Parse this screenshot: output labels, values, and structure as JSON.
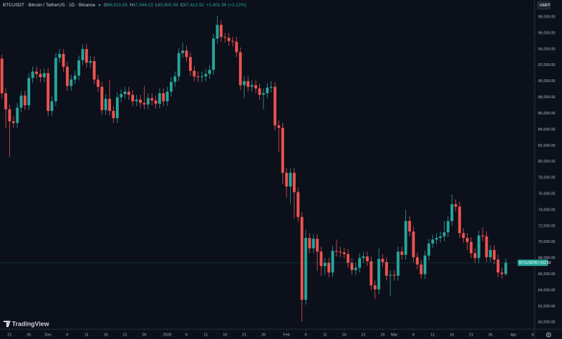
{
  "header": {
    "symbol": "BTCUSDT · Bitcoin / TetherUS · 1D · Binance",
    "ohlc": [
      {
        "key": "O",
        "value": "66,010.93"
      },
      {
        "key": "H",
        "value": "67,946.02"
      },
      {
        "key": "L",
        "value": "65,800.59"
      },
      {
        "key": "C",
        "value": "67,412.92"
      }
    ],
    "change": "+1,401.99 (+2.12%)",
    "currency": "USDT",
    "brand": "TradingView"
  },
  "chart_data": {
    "type": "candlestick",
    "up_color": "#26a69a",
    "down_color": "#ef5350",
    "last_price": 67412.92,
    "last_price_symbol": "BTCUSDT",
    "last_price_label": "67,412.92",
    "open": [
      92800,
      88500,
      86500,
      85000,
      84800,
      86700,
      88200,
      87000,
      90400,
      91200,
      90900,
      90500,
      91000,
      86300,
      87500,
      92900,
      93400,
      91800,
      89400,
      90200,
      90700,
      92600,
      94000,
      92300,
      92500,
      90200,
      89300,
      86400,
      87800,
      86300,
      85400,
      88000,
      88400,
      88700,
      88300,
      87500,
      87700,
      87300,
      87100,
      87900,
      87600,
      87200,
      88500,
      87500,
      88700,
      89900,
      90600,
      93500,
      93800,
      93000,
      91300,
      90600,
      90500,
      90600,
      90900,
      91400,
      95300,
      97000,
      95500,
      95400,
      95000,
      94900,
      93600,
      89500,
      90000,
      89300,
      89500,
      89100,
      88300,
      88500,
      89200,
      89300,
      84500,
      84200,
      78600,
      76900,
      78600,
      76200,
      73100,
      62800,
      70500,
      69200,
      70400,
      68800,
      67000,
      67400,
      66200,
      68900,
      68800,
      68700,
      68500,
      67400,
      66500,
      66800,
      68000,
      68200,
      67600,
      64600,
      64100,
      67900,
      67500,
      65800,
      65900,
      65800,
      68800,
      68400,
      72600,
      71300,
      68100,
      67200,
      66000,
      68300,
      69800,
      70300,
      70500,
      70700,
      71200,
      72600,
      74700,
      74400,
      71100,
      70500,
      70000,
      68600,
      68000,
      70800,
      70700,
      68100,
      69000,
      67800,
      66200,
      66010.93
    ],
    "high": [
      93300,
      89100,
      87100,
      85600,
      87300,
      88800,
      88800,
      91000,
      91800,
      91800,
      91500,
      91600,
      91600,
      88100,
      93500,
      94000,
      94000,
      92400,
      90800,
      91300,
      93200,
      94600,
      94600,
      93100,
      93100,
      90800,
      89900,
      88400,
      90200,
      86900,
      88600,
      89000,
      89300,
      89300,
      88900,
      88300,
      88300,
      89400,
      88500,
      88500,
      88200,
      89100,
      89100,
      89300,
      90500,
      91200,
      94100,
      94800,
      94400,
      93600,
      91900,
      91200,
      91200,
      91500,
      92000,
      95900,
      98100,
      97600,
      96000,
      96000,
      95500,
      95500,
      94200,
      90600,
      90600,
      90100,
      90100,
      89700,
      89100,
      89800,
      90000,
      89900,
      85100,
      84800,
      79200,
      79200,
      79200,
      76800,
      73700,
      71500,
      71100,
      71000,
      71000,
      69400,
      68000,
      68000,
      69500,
      70300,
      69400,
      69300,
      69100,
      68000,
      67400,
      68600,
      68800,
      68800,
      68200,
      65200,
      69200,
      68500,
      68100,
      66500,
      66500,
      69400,
      69400,
      74000,
      73200,
      71900,
      68700,
      67800,
      68900,
      70400,
      70900,
      71100,
      71300,
      72600,
      73200,
      75900,
      75300,
      75000,
      71700,
      71100,
      70600,
      69200,
      71400,
      71800,
      71300,
      69600,
      69600,
      68400,
      66800,
      67946.02
    ],
    "low": [
      87900,
      84200,
      80600,
      84200,
      84200,
      86100,
      86400,
      86400,
      89800,
      90300,
      89900,
      89900,
      85700,
      85700,
      86900,
      92300,
      91200,
      88800,
      88800,
      89600,
      90100,
      92000,
      91700,
      91700,
      89600,
      88700,
      85800,
      85800,
      85700,
      84800,
      84800,
      87400,
      87800,
      87700,
      86900,
      86900,
      86700,
      86500,
      86500,
      87000,
      86600,
      86600,
      86900,
      86900,
      88100,
      89300,
      90000,
      92900,
      92400,
      90700,
      90000,
      89900,
      89900,
      90000,
      90300,
      90800,
      94700,
      94900,
      94800,
      94400,
      94300,
      93000,
      88900,
      87900,
      88700,
      88700,
      88500,
      87700,
      86500,
      87900,
      88600,
      83900,
      81200,
      77200,
      75500,
      74800,
      72900,
      72500,
      60100,
      62200,
      68600,
      68600,
      66400,
      65800,
      65900,
      65600,
      65600,
      68200,
      68100,
      67900,
      66800,
      65900,
      65900,
      66200,
      67400,
      67000,
      64000,
      62900,
      63500,
      66900,
      65200,
      63300,
      65200,
      65200,
      67800,
      67800,
      70700,
      67500,
      66600,
      65400,
      65400,
      67700,
      69200,
      69700,
      69900,
      70100,
      70600,
      72000,
      73800,
      70500,
      69900,
      69000,
      68000,
      67400,
      67400,
      70100,
      67500,
      67500,
      67200,
      65600,
      65400,
      65800.59
    ],
    "close": [
      88500,
      86500,
      85000,
      84800,
      86700,
      88200,
      87000,
      90400,
      91200,
      90900,
      90500,
      91000,
      86300,
      87500,
      92900,
      93400,
      91800,
      89400,
      90200,
      90700,
      92600,
      94000,
      92300,
      92500,
      90200,
      89300,
      86400,
      87800,
      86300,
      85400,
      88000,
      88400,
      88700,
      88300,
      87500,
      87700,
      87300,
      87100,
      87900,
      87600,
      87200,
      88500,
      87500,
      88700,
      89900,
      90600,
      93500,
      93800,
      93000,
      91300,
      90600,
      90500,
      90600,
      90900,
      91400,
      95300,
      97000,
      95500,
      95400,
      95000,
      94900,
      93600,
      89500,
      90000,
      89300,
      89500,
      89100,
      88300,
      88500,
      89200,
      89300,
      84500,
      84200,
      78600,
      76900,
      78600,
      76200,
      73100,
      62800,
      70500,
      69200,
      70400,
      68800,
      67000,
      67400,
      66200,
      68900,
      68800,
      68700,
      68500,
      67400,
      66500,
      66800,
      68000,
      68200,
      67600,
      64600,
      64100,
      67900,
      67500,
      65800,
      65900,
      65800,
      68800,
      68400,
      72600,
      71300,
      68100,
      67200,
      66000,
      68300,
      69800,
      70300,
      70500,
      70700,
      71200,
      72600,
      74700,
      74400,
      71100,
      70500,
      70000,
      68600,
      68000,
      70800,
      70700,
      68100,
      69000,
      67800,
      66200,
      66010.93,
      67412.92
    ],
    "xlim": [
      -0.5,
      138.5
    ],
    "xticks": [
      {
        "value": 2,
        "label": "21"
      },
      {
        "value": 7,
        "label": "26"
      },
      {
        "value": 12,
        "label": "Dec"
      },
      {
        "value": 17,
        "label": "6"
      },
      {
        "value": 22,
        "label": "11"
      },
      {
        "value": 27,
        "label": "16"
      },
      {
        "value": 32,
        "label": "21"
      },
      {
        "value": 37,
        "label": "26"
      },
      {
        "value": 43,
        "label": "2026"
      },
      {
        "value": 48,
        "label": "6"
      },
      {
        "value": 53,
        "label": "11"
      },
      {
        "value": 58,
        "label": "16"
      },
      {
        "value": 63,
        "label": "21"
      },
      {
        "value": 68,
        "label": "26"
      },
      {
        "value": 74,
        "label": "Feb"
      },
      {
        "value": 79,
        "label": "6"
      },
      {
        "value": 84,
        "label": "11"
      },
      {
        "value": 89,
        "label": "16"
      },
      {
        "value": 94,
        "label": "21"
      },
      {
        "value": 99,
        "label": "26"
      },
      {
        "value": 102,
        "label": "Mar"
      },
      {
        "value": 107,
        "label": "6"
      },
      {
        "value": 112,
        "label": "11"
      },
      {
        "value": 117,
        "label": "16"
      },
      {
        "value": 122,
        "label": "21"
      },
      {
        "value": 127,
        "label": "26"
      },
      {
        "value": 133,
        "label": "Apr"
      },
      {
        "value": 138,
        "label": "6"
      }
    ],
    "ylim": [
      59150,
      100100
    ],
    "yticks": [
      {
        "value": 60000,
        "label": "60,000.00"
      },
      {
        "value": 62000,
        "label": "62,000.00"
      },
      {
        "value": 64000,
        "label": "64,000.00"
      },
      {
        "value": 66000,
        "label": "66,000.00"
      },
      {
        "value": 68000,
        "label": "68,000.00"
      },
      {
        "value": 70000,
        "label": "70,000.00"
      },
      {
        "value": 72000,
        "label": "72,000.00"
      },
      {
        "value": 74000,
        "label": "74,000.00"
      },
      {
        "value": 76000,
        "label": "76,000.00"
      },
      {
        "value": 78000,
        "label": "78,000.00"
      },
      {
        "value": 80000,
        "label": "80,000.00"
      },
      {
        "value": 82000,
        "label": "82,000.00"
      },
      {
        "value": 84000,
        "label": "84,000.00"
      },
      {
        "value": 86000,
        "label": "86,000.00"
      },
      {
        "value": 88000,
        "label": "88,000.00"
      },
      {
        "value": 90000,
        "label": "90,000.00"
      },
      {
        "value": 92000,
        "label": "92,000.00"
      },
      {
        "value": 94000,
        "label": "94,000.00"
      },
      {
        "value": 96000,
        "label": "96,000.00"
      },
      {
        "value": 98000,
        "label": "98,000.00"
      }
    ],
    "grid": false
  }
}
